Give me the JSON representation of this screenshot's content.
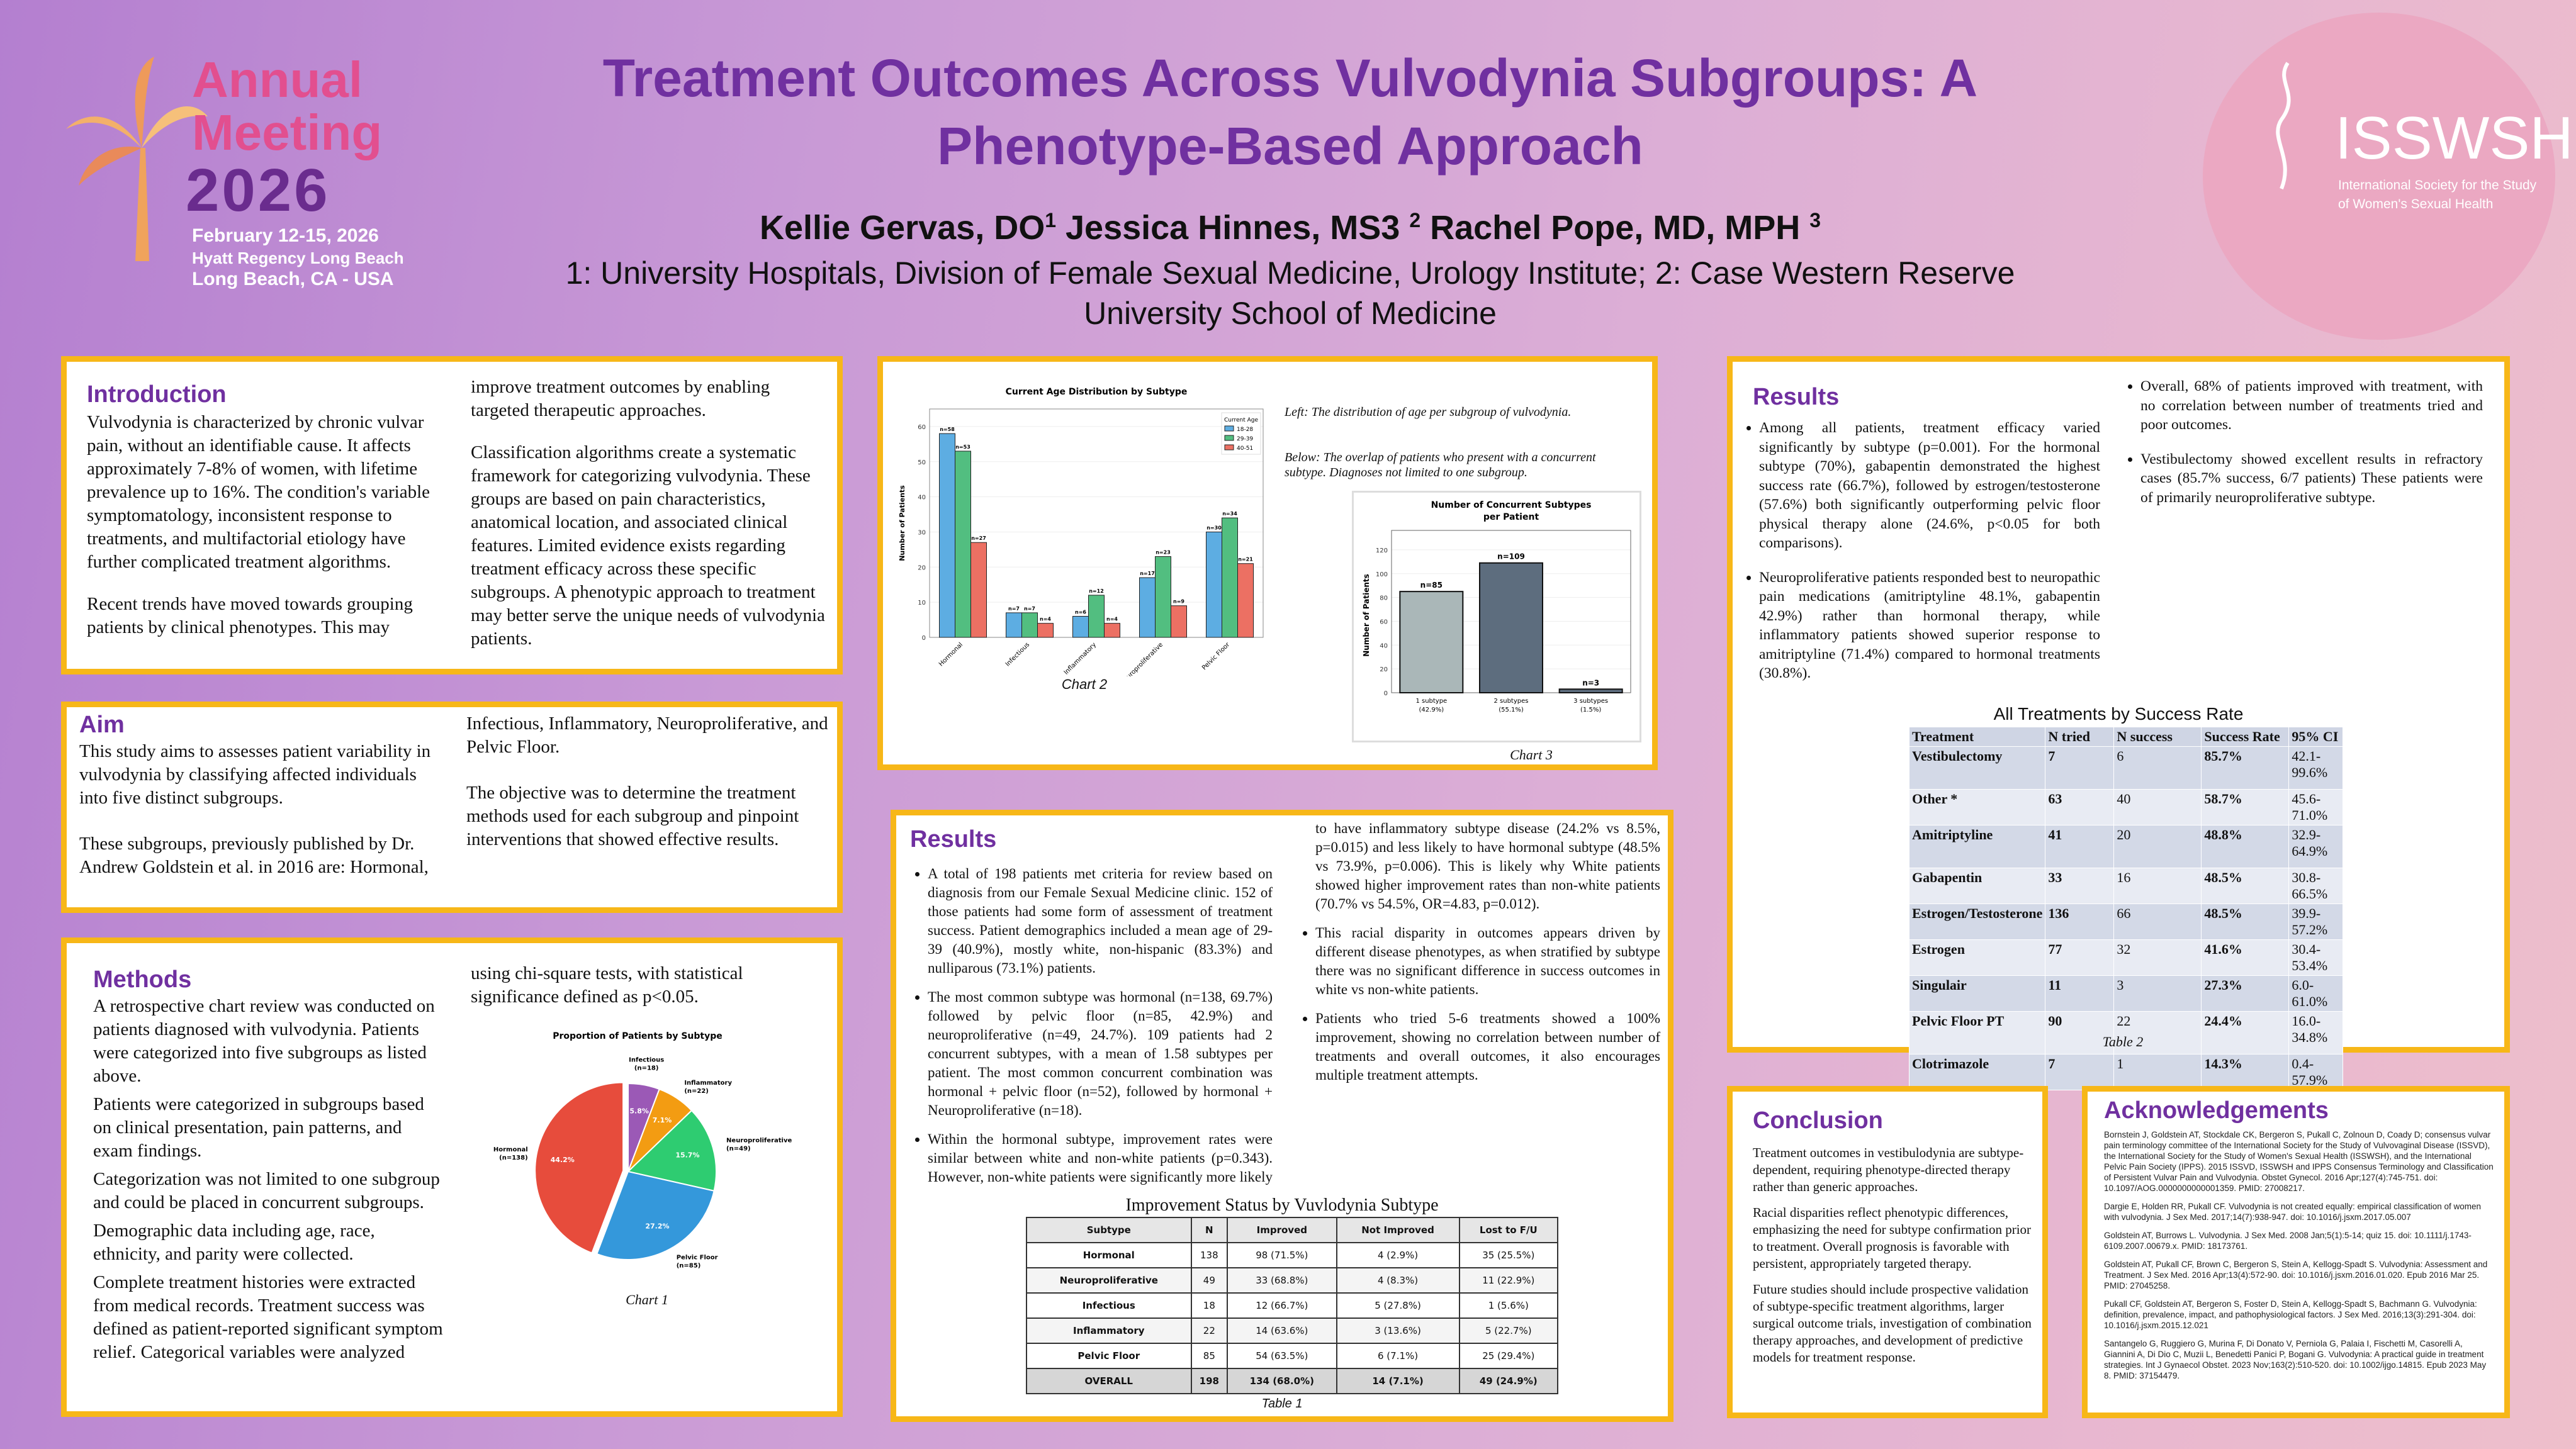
{
  "header": {
    "title_line1": "Treatment Outcomes Across Vulvodynia Subgroups: A",
    "title_line2": "Phenotype-Based Approach",
    "authors": [
      {
        "name": "Kellie Gervas, DO",
        "sup": "1"
      },
      {
        "name": "Jessica Hinnes, MS3",
        "sup": "2"
      },
      {
        "name": "Rachel Pope, MD, MPH",
        "sup": "3"
      }
    ],
    "affiliations_line1": "1: University Hospitals, Division of Female Sexual Medicine, Urology Institute; 2: Case Western Reserve",
    "affiliations_line2": "University School of Medicine"
  },
  "meeting_logo": {
    "line1": "Annual",
    "line2": "Meeting",
    "year": "2026",
    "dates": "February 12-15, 2026",
    "venue": "Hyatt Regency Long Beach",
    "location": "Long Beach, CA - USA"
  },
  "society_logo": {
    "acronym": "ISSWSH",
    "line1": "International Society for the Study",
    "line2": "of Women's Sexual Health"
  },
  "introduction": {
    "heading": "Introduction",
    "p1": "Vulvodynia is characterized by chronic vulvar pain, without an identifiable cause. It affects approximately 7-8% of women, with lifetime prevalence up to 16%. The condition's variable symptomatology, inconsistent response to treatments, and multifactorial etiology have further complicated treatment algorithms.",
    "p2": "Recent trends have moved towards grouping patients by clinical phenotypes. This may improve treatment outcomes by enabling targeted therapeutic approaches.",
    "p3": "Classification algorithms create a systematic framework for categorizing vulvodynia. These groups are based on pain characteristics, anatomical location, and associated clinical features. Limited evidence exists regarding treatment efficacy across these specific subgroups. A phenotypic approach to treatment may better serve the unique needs of vulvodynia patients."
  },
  "aim": {
    "heading": "Aim",
    "p1": "This study aims to assesses patient variability in vulvodynia by classifying affected individuals into five distinct subgroups.",
    "p2": "These subgroups, previously published by Dr. Andrew Goldstein et al. in 2016 are: Hormonal, Infectious, Inflammatory, Neuroproliferative, and Pelvic Floor.",
    "p3": "The objective was to determine the treatment methods used for each subgroup and pinpoint interventions that showed effective results."
  },
  "methods": {
    "heading": "Methods",
    "paragraphs": [
      "A retrospective chart review was conducted on patients diagnosed with vulvodynia. Patients were categorized into five subgroups as listed above.",
      "Patients were categorized in subgroups based on clinical presentation, pain patterns, and exam findings.",
      "Categorization was not limited to one subgroup and could be placed in concurrent subgroups.",
      "Demographic data including age, race, ethnicity, and parity were collected.",
      "Complete treatment histories were extracted from medical records. Treatment success was defined as patient-reported significant symptom relief. Categorical variables were analyzed using chi-square tests, with statistical significance defined as p<0.05."
    ]
  },
  "captions": {
    "chart1": "Chart 1",
    "chart2": "Chart 2",
    "chart3": "Chart 3",
    "table1": "Table 1",
    "table2": "Table 2",
    "left_note": "Left: The distribution of age per subgroup of vulvodynia.",
    "below_note": "Below: The  overlap of patients who present with a concurrent subtype. Diagnoses not limited to one subgroup."
  },
  "results_middle": {
    "heading": "Results",
    "bullets": [
      "A total of 198 patients met criteria for review based on diagnosis from our Female Sexual Medicine clinic. 152 of those patients had some form of assessment of treatment success. Patient demographics included a mean age of 29-39 (40.9%), mostly white, non-hispanic (83.3%) and nulliparous (73.1%) patients.",
      "The most common subtype was hormonal (n=138, 69.7%) followed by pelvic floor (n=85, 42.9%) and neuroproliferative (n=49, 24.7%). 109 patients had 2 concurrent subtypes, with a mean of 1.58 subtypes per patient. The most common concurrent combination was hormonal + pelvic floor (n=52), followed by hormonal + Neuroproliferative (n=18).",
      "Within the hormonal subtype, improvement rates were similar between white and non-white patients (p=0.343). However, non-white patients were significantly more likely to have inflammatory subtype disease (24.2% vs 8.5%, p=0.015) and less likely to have hormonal subtype (48.5% vs 73.9%, p=0.006). This is likely why White patients showed higher improvement rates than non-white patients (70.7% vs 54.5%, OR=4.83, p=0.012).",
      "This racial disparity in outcomes appears driven by different disease phenotypes, as when stratified by subtype there was no significant difference in success outcomes in white vs non-white patients.",
      "Patients who tried 5-6 treatments showed a 100% improvement, showing no correlation between number of treatments and overall outcomes, it also encourages multiple treatment attempts."
    ]
  },
  "table1": {
    "title": "Improvement Status by Vuvlodynia Subtype",
    "headers": [
      "Subtype",
      "N",
      "Improved",
      "Not Improved",
      "Lost to F/U"
    ],
    "rows": [
      [
        "Hormonal",
        "138",
        "98 (71.5%)",
        "4 (2.9%)",
        "35 (25.5%)"
      ],
      [
        "Neuroproliferative",
        "49",
        "33 (68.8%)",
        "4 (8.3%)",
        "11 (22.9%)"
      ],
      [
        "Infectious",
        "18",
        "12 (66.7%)",
        "5 (27.8%)",
        "1 (5.6%)"
      ],
      [
        "Inflammatory",
        "22",
        "14 (63.6%)",
        "3 (13.6%)",
        "5 (22.7%)"
      ],
      [
        "Pelvic Floor",
        "85",
        "54 (63.5%)",
        "6 (7.1%)",
        "25 (29.4%)"
      ],
      [
        "OVERALL",
        "198",
        "134 (68.0%)",
        "14 (7.1%)",
        "49 (24.9%)"
      ]
    ]
  },
  "results_right": {
    "heading": "Results",
    "bullets": [
      "Among all patients, treatment efficacy varied significantly by subtype (p=0.001). For the hormonal subtype (70%), gabapentin demonstrated the highest success rate (66.7%), followed by estrogen/testosterone (57.6%) both significantly outperforming pelvic floor physical therapy alone (24.6%, p<0.05 for both comparisons).",
      "Neuroproliferative patients responded best to neuropathic pain medications (amitriptyline 48.1%, gabapentin 42.9%) rather than hormonal therapy, while inflammatory patients showed superior response to amitriptyline (71.4%) compared to hormonal treatments (30.8%).",
      "Overall, 68% of patients improved with treatment, with no correlation between number of treatments tried and poor outcomes.",
      "Vestibulectomy showed excellent results in refractory cases (85.7% success, 6/7 patients) These patients were of primarily neuroproliferative subtype."
    ]
  },
  "table2": {
    "title": "All Treatments by Success Rate",
    "headers": [
      "Treatment",
      "N tried",
      "N success",
      "Success Rate",
      "95% CI"
    ],
    "rows": [
      [
        "Vestibulectomy",
        "7",
        "6",
        "85.7%",
        "42.1-99.6%"
      ],
      [
        "Other *",
        "63",
        "40",
        "58.7%",
        "45.6-71.0%"
      ],
      [
        "Amitriptyline",
        "41",
        "20",
        "48.8%",
        "32.9-64.9%"
      ],
      [
        "Gabapentin",
        "33",
        "16",
        "48.5%",
        "30.8-66.5%"
      ],
      [
        "Estrogen/Testosterone",
        "136",
        "66",
        "48.5%",
        "39.9-57.2%"
      ],
      [
        "Estrogen",
        "77",
        "32",
        "41.6%",
        "30.4-53.4%"
      ],
      [
        "Singulair",
        "11",
        "3",
        "27.3%",
        "6.0-61.0%"
      ],
      [
        "Pelvic Floor PT",
        "90",
        "22",
        "24.4%",
        "16.0-34.8%"
      ],
      [
        "Clotrimazole",
        "7",
        "1",
        "14.3%",
        "0.4-57.9%"
      ]
    ]
  },
  "conclusion": {
    "heading": "Conclusion",
    "paragraphs": [
      "Treatment outcomes in vestibulodynia are subtype-dependent, requiring phenotype-directed therapy rather than generic approaches.",
      "Racial disparities reflect phenotypic differences, emphasizing the need for subtype confirmation prior to treatment. Overall prognosis is favorable with persistent, appropriately targeted therapy.",
      "Future studies should include prospective validation of subtype-specific treatment algorithms, larger surgical outcome trials, investigation of combination therapy approaches, and development of predictive models for treatment response."
    ]
  },
  "acknowledgements": {
    "heading": "Acknowledgements",
    "references": [
      "Bornstein J, Goldstein AT, Stockdale CK, Bergeron S, Pukall C, Zolnoun D, Coady D; consensus vulvar pain terminology committee of the International Society for the Study of Vulvovaginal Disease (ISSVD), the International Society for the Study of Women's Sexual Health (ISSWSH), and the International Pelvic Pain Society (IPPS). 2015 ISSVD, ISSWSH and IPPS Consensus Terminology and Classification of Persistent Vulvar Pain and Vulvodynia. Obstet Gynecol. 2016 Apr;127(4):745-751. doi: 10.1097/AOG.0000000000001359. PMID: 27008217.",
      "Dargie E, Holden RR, Pukall CF. Vulvodynia is not created equally: empirical classification of women with vulvodynia. J Sex Med. 2017;14(7):938-947. doi: 10.1016/j.jsxm.2017.05.007",
      "Goldstein AT, Burrows L. Vulvodynia. J Sex Med. 2008 Jan;5(1):5-14; quiz 15. doi: 10.1111/j.1743-6109.2007.00679.x. PMID: 18173761.",
      "Goldstein AT, Pukall CF, Brown C, Bergeron S, Stein A, Kellogg-Spadt S. Vulvodynia: Assessment and Treatment. J Sex Med. 2016 Apr;13(4):572-90. doi: 10.1016/j.jsxm.2016.01.020. Epub 2016 Mar 25. PMID: 27045258.",
      "Pukall CF, Goldstein AT, Bergeron S, Foster D, Stein A, Kellogg-Spadt S, Bachmann G. Vulvodynia: definition, prevalence, impact, and pathophysiological factors. J Sex Med. 2016;13(3):291-304. doi: 10.1016/j.jsxm.2015.12.021",
      "Santangelo G, Ruggiero G, Murina F, Di Donato V, Perniola G, Palaia I, Fischetti M, Casorelli A, Giannini A, Di Dio C, Muzii L, Benedetti Panici P, Bogani G. Vulvodynia: A practical guide in treatment strategies. Int J Gynaecol Obstet. 2023 Nov;163(2):510-520. doi: 10.1002/ijgo.14815. Epub 2023 May 8. PMID: 37154479."
    ]
  },
  "colors": {
    "accent": "#7030a0",
    "border": "#f7b718"
  },
  "chart_data": [
    {
      "id": "chart1",
      "type": "pie",
      "title": "Proportion of Patients by Subtype",
      "slices": [
        {
          "label": "Infectious",
          "n_label": "(n=18)",
          "value": 18,
          "pct": "5.8%",
          "color": "#9b59b6"
        },
        {
          "label": "Inflammatory",
          "n_label": "(n=22)",
          "value": 22,
          "pct": "7.1%",
          "color": "#f39c12"
        },
        {
          "label": "Neuroproliferative",
          "n_label": "(n=49)",
          "value": 49,
          "pct": "15.7%",
          "color": "#2ecc71"
        },
        {
          "label": "Pelvic Floor",
          "n_label": "(n=85)",
          "value": 85,
          "pct": "27.2%",
          "color": "#3498db"
        },
        {
          "label": "Hormonal",
          "n_label": "(n=138)",
          "value": 138,
          "pct": "44.2%",
          "color": "#e74c3c",
          "exploded": true
        }
      ]
    },
    {
      "id": "chart2",
      "type": "bar",
      "title": "Current Age Distribution by Subtype",
      "ylabel": "Number of Patients",
      "xlabel": "",
      "ylim": [
        0,
        65
      ],
      "yticks": [
        0,
        10,
        20,
        30,
        40,
        50,
        60
      ],
      "legend_title": "Current Age",
      "legend_position": "top-right",
      "categories": [
        "Hormonal",
        "Infectious",
        "Inflammatory",
        "Neuroproliferative",
        "Pelvic Floor"
      ],
      "series": [
        {
          "name": "18-28",
          "color": "#5dade2",
          "values": [
            58,
            7,
            6,
            17,
            30
          ]
        },
        {
          "name": "29-39",
          "color": "#52be80",
          "values": [
            53,
            7,
            12,
            23,
            34
          ]
        },
        {
          "name": "40-51",
          "color": "#ec7063",
          "values": [
            27,
            4,
            4,
            9,
            21
          ]
        }
      ]
    },
    {
      "id": "chart3",
      "type": "bar",
      "title": "Number of Concurrent Subtypes per Patient",
      "ylabel": "Number of Patients",
      "ylim": [
        0,
        130
      ],
      "yticks": [
        0,
        20,
        40,
        60,
        80,
        100,
        120
      ],
      "categories": [
        "1 subtype",
        "2 subtypes",
        "3 subtypes"
      ],
      "category_pcts": [
        "(42.9%)",
        "(55.1%)",
        "(1.5%)"
      ],
      "values": [
        85,
        109,
        3
      ],
      "colors": [
        "#aab7b8",
        "#5d6d7e",
        "#5d6d7e"
      ]
    }
  ]
}
